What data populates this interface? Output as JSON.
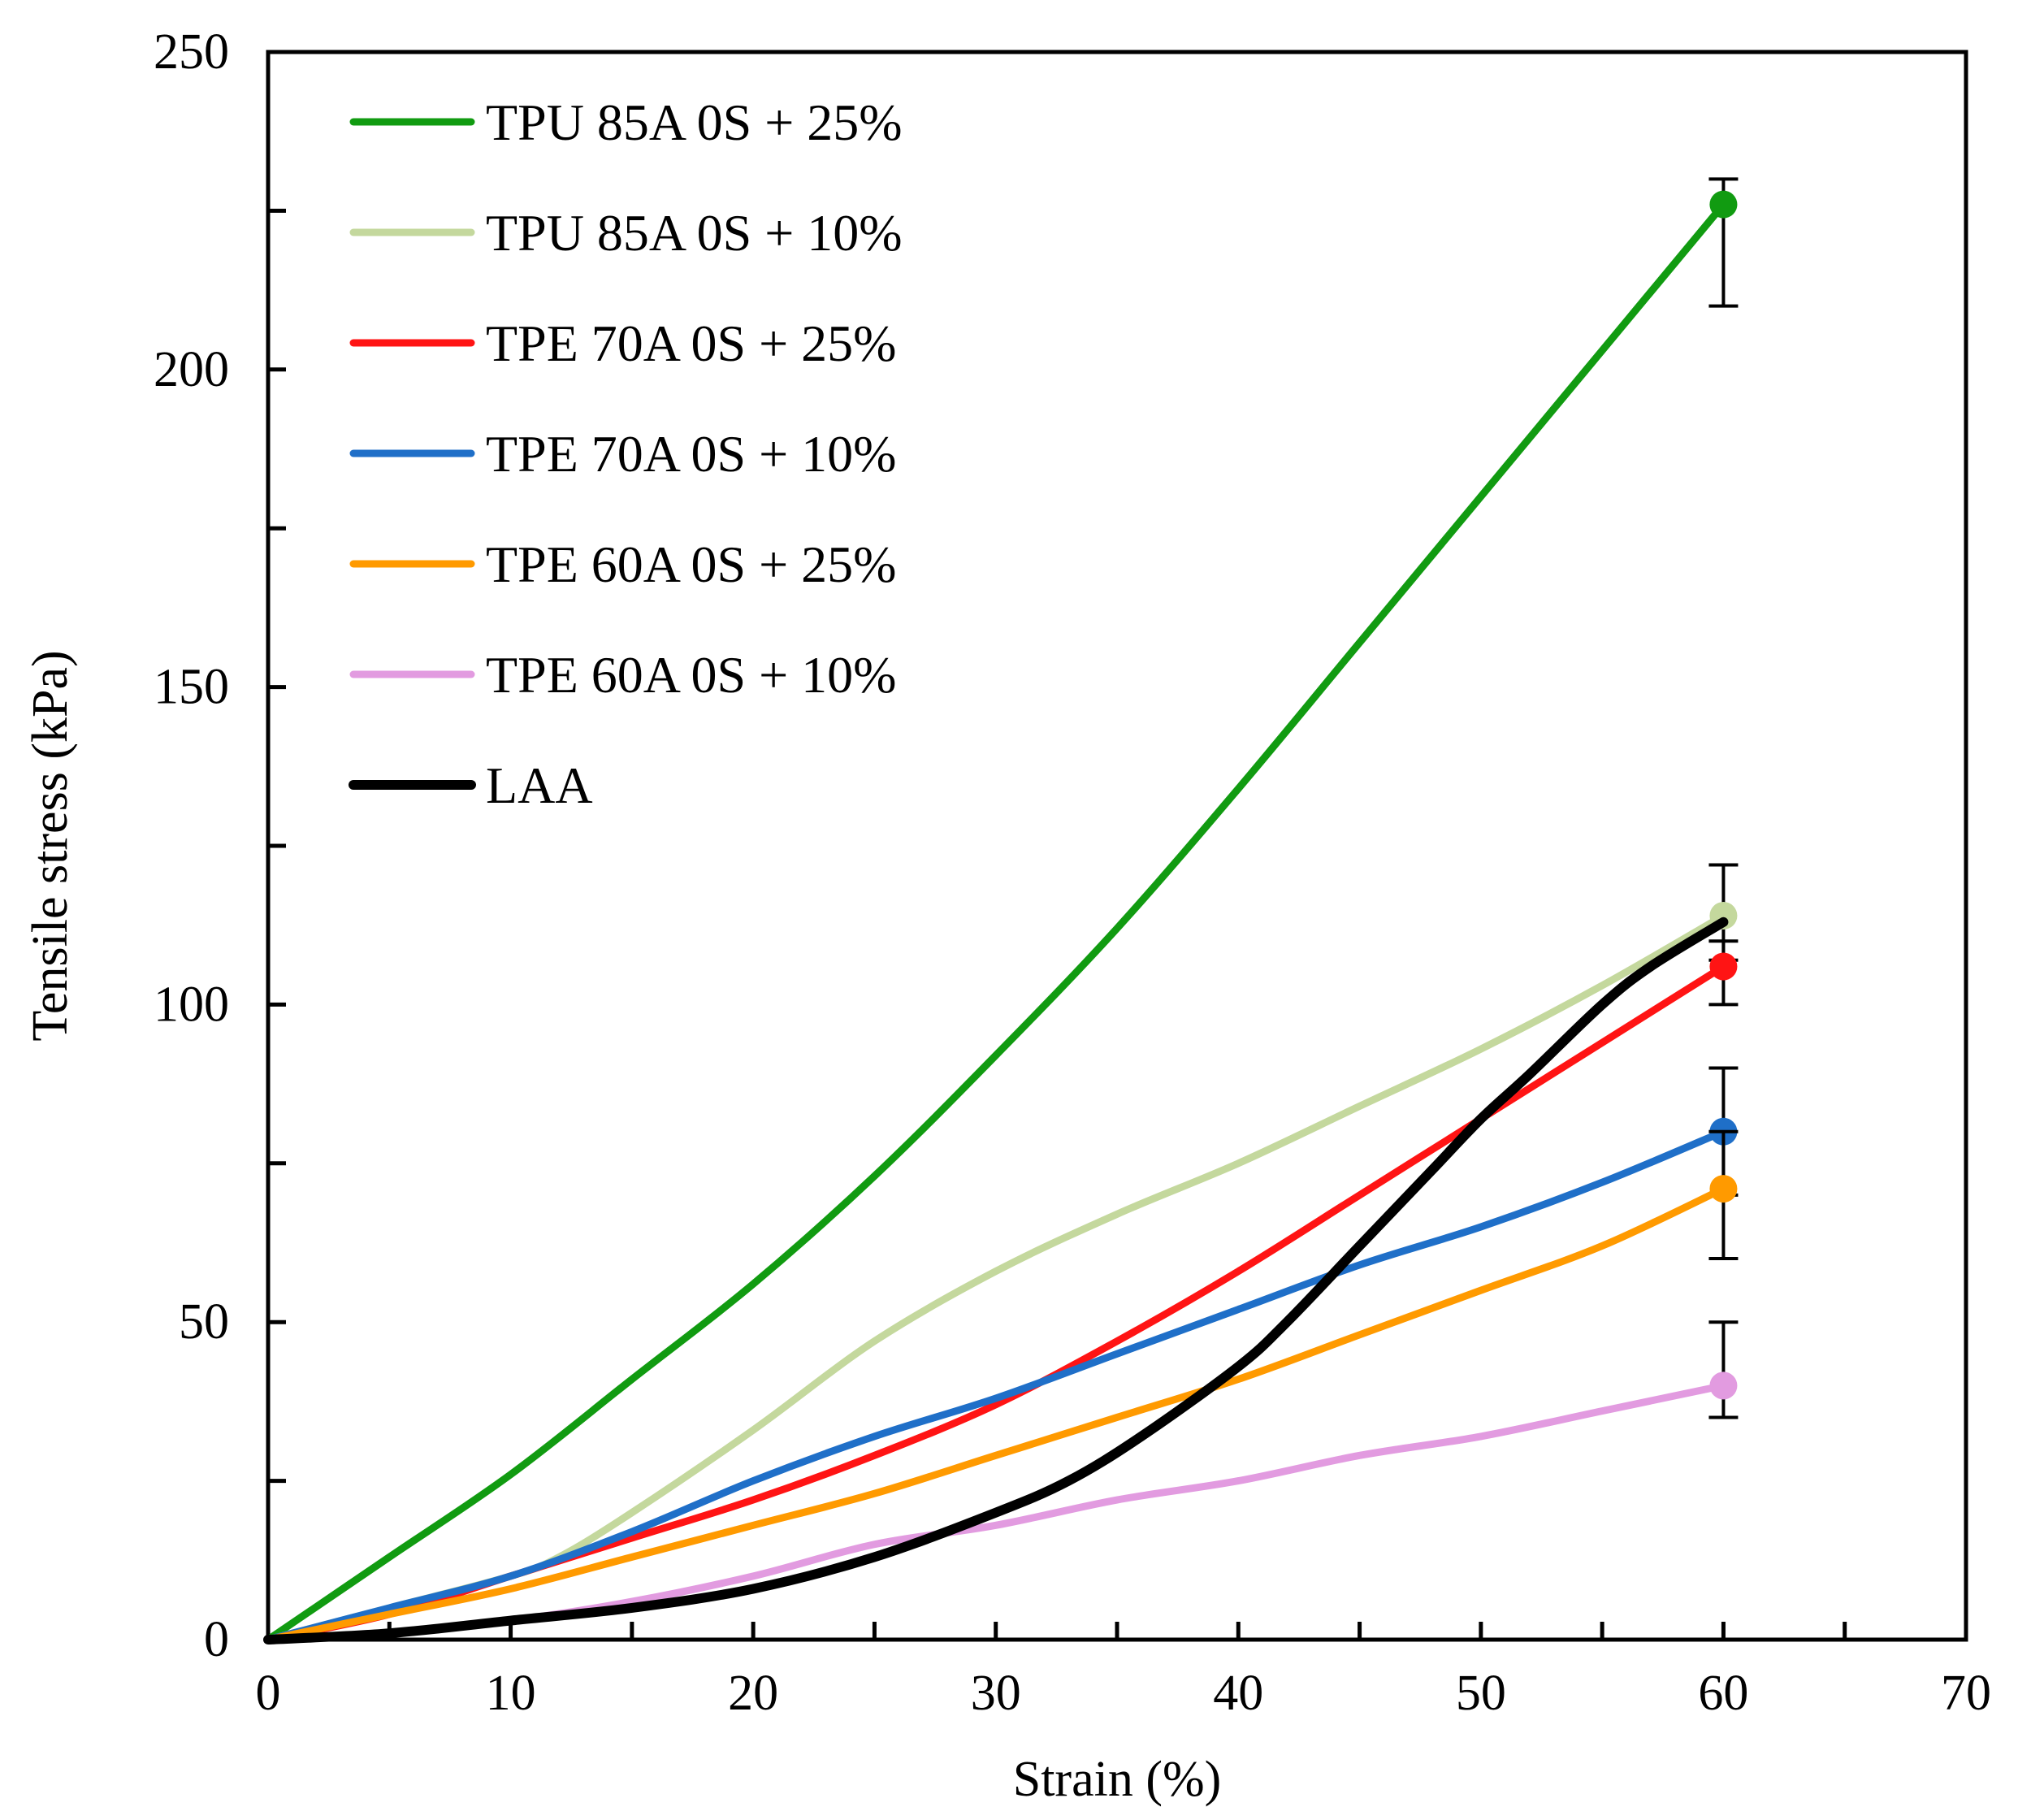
{
  "chart_data": {
    "type": "line",
    "title": "",
    "xlabel": "Strain (%)",
    "ylabel": "Tensile stress (kPa)",
    "xlim": [
      0,
      70
    ],
    "ylim": [
      0,
      250
    ],
    "xticks": [
      0,
      10,
      20,
      30,
      40,
      50,
      60,
      70
    ],
    "yticks": [
      0,
      50,
      100,
      150,
      200,
      250
    ],
    "grid": false,
    "legend_position": "top-left",
    "series": [
      {
        "name": "TPU 85A 0S + 25%",
        "color": "#119b11",
        "x": [
          0,
          5,
          10,
          15,
          20,
          25,
          30,
          35,
          40,
          45,
          50,
          55,
          60
        ],
        "y": [
          0,
          13,
          26,
          41,
          56,
          73,
          92,
          112,
          134,
          157,
          180,
          203,
          226
        ],
        "end_point": {
          "x": 60,
          "y": 226,
          "err_low": 210,
          "err_high": 230
        }
      },
      {
        "name": "TPU 85A 0S + 10%",
        "color": "#c4d89d",
        "x": [
          0,
          5,
          10,
          12,
          15,
          20,
          25,
          30,
          35,
          40,
          45,
          50,
          55,
          60
        ],
        "y": [
          0,
          5,
          10,
          13,
          20,
          33,
          47,
          58,
          67,
          75,
          84,
          93,
          103,
          114
        ],
        "end_point": {
          "x": 60,
          "y": 114,
          "err_low": 107,
          "err_high": 122
        }
      },
      {
        "name": "TPE 70A 0S + 25%",
        "color": "#ff1414",
        "x": [
          0,
          5,
          10,
          15,
          20,
          25,
          30,
          35,
          40,
          45,
          50,
          55,
          60
        ],
        "y": [
          0,
          4,
          10,
          16,
          22,
          29,
          37,
          47,
          58,
          70,
          82,
          94,
          106
        ],
        "end_point": {
          "x": 60,
          "y": 106,
          "err_low": 100,
          "err_high": 110
        }
      },
      {
        "name": "TPE 70A 0S + 10%",
        "color": "#1f6fc8",
        "x": [
          0,
          5,
          10,
          15,
          20,
          25,
          30,
          35,
          40,
          45,
          50,
          55,
          60
        ],
        "y": [
          0,
          5,
          10,
          17,
          25,
          32,
          38,
          45,
          52,
          59,
          65,
          72,
          80
        ],
        "end_point": {
          "x": 60,
          "y": 80,
          "err_low": 70,
          "err_high": 90
        }
      },
      {
        "name": "TPE 60A 0S + 25%",
        "color": "#ff9a00",
        "x": [
          0,
          5,
          10,
          15,
          20,
          25,
          30,
          35,
          40,
          45,
          50,
          55,
          60
        ],
        "y": [
          0,
          4,
          8,
          13,
          18,
          23,
          29,
          35,
          41,
          48,
          55,
          62,
          71
        ],
        "end_point": {
          "x": 60,
          "y": 71,
          "err_low": 60,
          "err_high": 80
        }
      },
      {
        "name": "TPE 60A 0S + 10%",
        "color": "#e29be0",
        "x": [
          0,
          5,
          10,
          15,
          20,
          25,
          30,
          35,
          40,
          45,
          50,
          55,
          60
        ],
        "y": [
          0,
          1,
          3,
          6,
          10,
          15,
          18,
          22,
          25,
          29,
          32,
          36,
          40
        ],
        "end_point": {
          "x": 60,
          "y": 40,
          "err_low": 35,
          "err_high": 50
        }
      },
      {
        "name": "LAA",
        "color": "#000000",
        "x": [
          0,
          5,
          10,
          15,
          20,
          25,
          30,
          33,
          36,
          40,
          42,
          45,
          48,
          50,
          52,
          55,
          57,
          60
        ],
        "y": [
          0,
          1,
          3,
          5,
          8,
          13,
          20,
          25,
          32,
          43,
          50,
          62,
          74,
          82,
          89,
          100,
          106,
          113
        ]
      }
    ]
  }
}
